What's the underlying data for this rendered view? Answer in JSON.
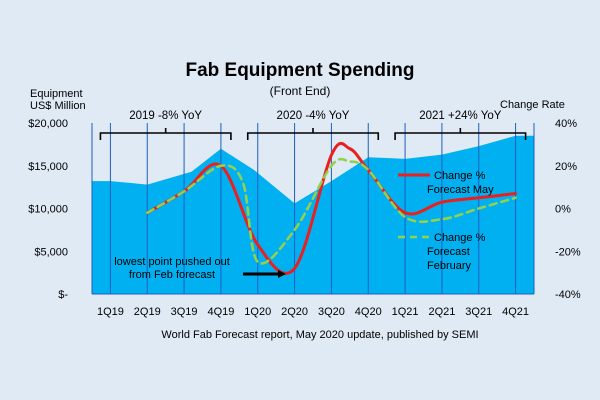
{
  "chart_data": {
    "type": "area",
    "title": "Fab Equipment Spending",
    "subtitle": "(Front End)",
    "left_axis_label_1": "Equipment",
    "left_axis_label_2": "US$ Million",
    "right_axis_label": "Change Rate",
    "source": "World Fab Forecast report, May 2020 update, published by SEMI",
    "categories": [
      "1Q19",
      "2Q19",
      "3Q19",
      "4Q19",
      "1Q20",
      "2Q20",
      "3Q20",
      "4Q20",
      "1Q21",
      "2Q21",
      "3Q21",
      "4Q21"
    ],
    "left_ticks": [
      "$-",
      "$5,000",
      "$10,000",
      "$15,000",
      "$20,000"
    ],
    "right_ticks": [
      "-40%",
      "-20%",
      "0%",
      "20%",
      "40%"
    ],
    "left_range": [
      0,
      20000
    ],
    "right_range": [
      -40,
      40
    ],
    "spending_area": {
      "x": [
        0,
        1,
        2.2,
        3,
        3.9,
        5,
        6,
        7,
        8,
        9,
        10,
        11
      ],
      "values": [
        13200,
        12800,
        14300,
        17000,
        14500,
        10600,
        13200,
        16000,
        15800,
        16300,
        17300,
        18500
      ]
    },
    "series": [
      {
        "name": "Change % Forecast May",
        "style": "solid",
        "color": "#e8201f",
        "x": [
          1,
          2,
          3,
          4,
          5,
          6,
          6.5,
          7,
          8,
          9,
          10,
          11
        ],
        "values": [
          -2,
          8,
          20,
          -17,
          -28,
          25,
          28,
          18,
          -2,
          3,
          5,
          7
        ]
      },
      {
        "name": "Change % Forecast February",
        "style": "dashed",
        "color": "#92d050",
        "x": [
          1,
          2,
          3,
          3.6,
          4,
          5,
          6,
          6.5,
          7,
          8,
          9,
          10,
          11
        ],
        "values": [
          -2,
          8,
          20,
          12,
          -25,
          -10,
          20,
          22,
          18,
          -4,
          -5,
          0,
          5
        ]
      }
    ],
    "legend": [
      {
        "line1": "Change %",
        "line2": "Forecast May",
        "line3": ""
      },
      {
        "line1": "Change %",
        "line2": "Forecast",
        "line3": "February"
      }
    ],
    "annotations": {
      "y2019": "2019 -8% YoY",
      "y2020": "2020 -4% YoY",
      "y2021": "2021 +24% YoY",
      "note_line1": "lowest point pushed out",
      "note_line2": "from Feb forecast"
    },
    "colors": {
      "background": "#dfeaf4",
      "area": "#00b0f0",
      "gridlines": "#1f5fbf",
      "may": "#e8201f",
      "february": "#92d050"
    }
  }
}
